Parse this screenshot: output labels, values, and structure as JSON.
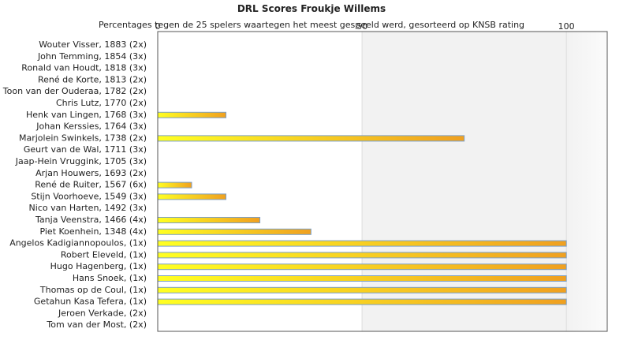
{
  "chart_data": {
    "type": "bar",
    "orientation": "horizontal",
    "title": "DRL Scores Froukje Willems",
    "subtitle": "Percentages tegen de 25 spelers waartegen het meest gespeeld werd, gesorteerd op KNSB rating",
    "xlim": [
      0,
      110
    ],
    "xticks": [
      0,
      50,
      100
    ],
    "grid": true,
    "bar_gradient": [
      "#ffff22",
      "#f0a020"
    ],
    "bar_border": "#7a9fc8",
    "categories": [
      "Wouter Visser, 1883 (2x)",
      "John Temming, 1854 (3x)",
      "Ronald van Houdt, 1818 (3x)",
      "René de Korte, 1813 (2x)",
      "Toon van der Ouderaa, 1782 (2x)",
      "Chris Lutz, 1770 (2x)",
      "Henk van Lingen, 1768 (3x)",
      "Johan Kerssies, 1764 (3x)",
      "Marjolein Swinkels, 1738 (2x)",
      "Geurt van de Wal, 1711 (3x)",
      "Jaap-Hein Vruggink, 1705 (3x)",
      "Arjan Houwers, 1693 (2x)",
      "René de Ruiter, 1567 (6x)",
      "Stijn Voorhoeve, 1549 (3x)",
      "Nico van Harten, 1492 (3x)",
      "Tanja Veenstra, 1466 (4x)",
      "Piet Koenhein, 1348 (4x)",
      "Angelos Kadigiannopoulos,  (1x)",
      "Robert Eleveld,  (1x)",
      "Hugo Hagenberg,  (1x)",
      "Hans Snoek,  (1x)",
      "Thomas op de Coul,  (1x)",
      "Getahun Kasa Tefera,  (1x)",
      "Jeroen Verkade,  (2x)",
      "Tom van der Most,  (2x)"
    ],
    "values": [
      0,
      0,
      0,
      0,
      0,
      0,
      16.7,
      0,
      75,
      0,
      0,
      0,
      8.3,
      16.7,
      0,
      25,
      37.5,
      100,
      100,
      100,
      100,
      100,
      100,
      0,
      0
    ]
  }
}
